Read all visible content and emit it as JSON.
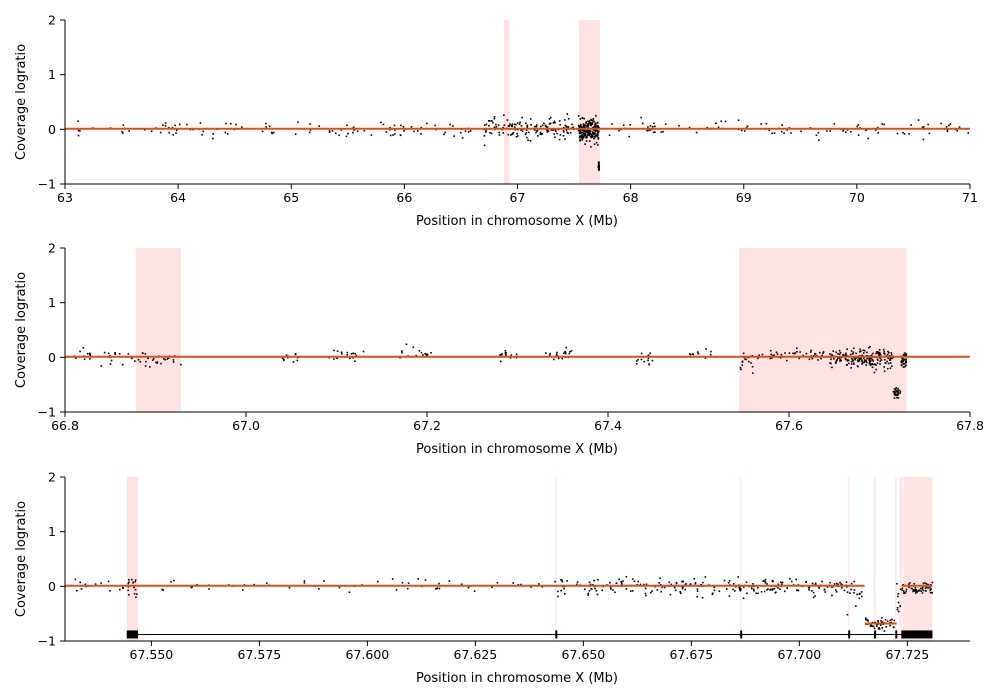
{
  "chart_data": [
    {
      "type": "scatter",
      "xlabel": "Position in chromosome X (Mb)",
      "ylabel": "Coverage logratio",
      "xlim": [
        63,
        71
      ],
      "ylim": [
        -1,
        2
      ],
      "xticks": [
        63,
        64,
        65,
        66,
        67,
        68,
        69,
        70,
        71
      ],
      "xtick_labels": [
        "63",
        "64",
        "65",
        "66",
        "67",
        "68",
        "69",
        "70",
        "71"
      ],
      "yticks": [
        -1,
        0,
        1,
        2
      ],
      "ytick_labels": [
        "−1",
        "0",
        "1",
        "2"
      ],
      "highlight_regions": [
        [
          66.88,
          66.93
        ],
        [
          67.545,
          67.73
        ]
      ],
      "segments": [
        {
          "x": [
            63,
            71
          ],
          "y": 0.01
        }
      ],
      "point_clusters": [
        {
          "x_range": [
            63.1,
            66.6
          ],
          "y_mean": 0.0,
          "spread": 0.07,
          "count": 110
        },
        {
          "x_range": [
            66.7,
            67.5
          ],
          "y_mean": 0.02,
          "spread": 0.09,
          "count": 150
        },
        {
          "x_range": [
            67.54,
            67.72
          ],
          "y_mean": -0.03,
          "spread": 0.1,
          "count": 220
        },
        {
          "x_range": [
            67.715,
            67.723
          ],
          "y_mean": -0.67,
          "spread": 0.05,
          "count": 25
        },
        {
          "x_range": [
            67.75,
            71.0
          ],
          "y_mean": 0.0,
          "spread": 0.07,
          "count": 110
        }
      ],
      "colors": {
        "points": "#000000",
        "segment": "#d9501f",
        "highlight": "#ffe3e3"
      }
    },
    {
      "type": "scatter",
      "xlabel": "Position in chromosome X (Mb)",
      "ylabel": "Coverage logratio",
      "xlim": [
        66.8,
        67.8
      ],
      "ylim": [
        -1,
        2
      ],
      "xticks": [
        66.8,
        67.0,
        67.2,
        67.4,
        67.6,
        67.8
      ],
      "xtick_labels": [
        "66.8",
        "67.0",
        "67.2",
        "67.4",
        "67.6",
        "67.8"
      ],
      "yticks": [
        -1,
        0,
        1,
        2
      ],
      "ytick_labels": [
        "−1",
        "0",
        "1",
        "2"
      ],
      "highlight_regions": [
        [
          66.878,
          66.928
        ],
        [
          67.545,
          67.73
        ]
      ],
      "segments": [
        {
          "x": [
            66.8,
            67.8
          ],
          "y": 0.01
        }
      ],
      "point_clusters": [
        {
          "x_range": [
            66.81,
            66.83
          ],
          "y_mean": 0.05,
          "spread": 0.05,
          "count": 12
        },
        {
          "x_range": [
            66.84,
            66.93
          ],
          "y_mean": -0.03,
          "spread": 0.07,
          "count": 45
        },
        {
          "x_range": [
            67.04,
            67.06
          ],
          "y_mean": -0.02,
          "spread": 0.05,
          "count": 12
        },
        {
          "x_range": [
            67.09,
            67.13
          ],
          "y_mean": 0.05,
          "spread": 0.05,
          "count": 18
        },
        {
          "x_range": [
            67.17,
            67.21
          ],
          "y_mean": 0.05,
          "spread": 0.06,
          "count": 18
        },
        {
          "x_range": [
            67.28,
            67.3
          ],
          "y_mean": 0.03,
          "spread": 0.06,
          "count": 15
        },
        {
          "x_range": [
            67.33,
            67.36
          ],
          "y_mean": 0.06,
          "spread": 0.05,
          "count": 20
        },
        {
          "x_range": [
            67.43,
            67.45
          ],
          "y_mean": -0.03,
          "spread": 0.05,
          "count": 15
        },
        {
          "x_range": [
            67.49,
            67.52
          ],
          "y_mean": 0.04,
          "spread": 0.05,
          "count": 12
        },
        {
          "x_range": [
            67.545,
            67.56
          ],
          "y_mean": -0.08,
          "spread": 0.1,
          "count": 18
        },
        {
          "x_range": [
            67.56,
            67.64
          ],
          "y_mean": 0.04,
          "spread": 0.05,
          "count": 45
        },
        {
          "x_range": [
            67.645,
            67.715
          ],
          "y_mean": -0.02,
          "spread": 0.09,
          "count": 200
        },
        {
          "x_range": [
            67.715,
            67.724
          ],
          "y_mean": -0.67,
          "spread": 0.05,
          "count": 30
        },
        {
          "x_range": [
            67.724,
            67.73
          ],
          "y_mean": -0.05,
          "spread": 0.08,
          "count": 40
        }
      ],
      "colors": {
        "points": "#000000",
        "segment": "#d9501f",
        "highlight": "#ffe3e3"
      }
    },
    {
      "type": "scatter",
      "xlabel": "Position in chromosome X (Mb)",
      "ylabel": "Coverage logratio",
      "xlim": [
        67.53,
        67.7395
      ],
      "ylim": [
        -1,
        2
      ],
      "xticks": [
        67.55,
        67.575,
        67.6,
        67.625,
        67.65,
        67.675,
        67.7,
        67.725
      ],
      "xtick_labels": [
        "67.550",
        "67.575",
        "67.600",
        "67.625",
        "67.650",
        "67.675",
        "67.700",
        "67.725"
      ],
      "yticks": [
        -1,
        0,
        1,
        2
      ],
      "ytick_labels": [
        "−1",
        "0",
        "1",
        "2"
      ],
      "highlight_regions": [
        [
          67.5443,
          67.5469
        ],
        [
          67.6435,
          67.6437
        ],
        [
          67.6863,
          67.6865
        ],
        [
          67.7113,
          67.7115
        ],
        [
          67.7173,
          67.7175
        ],
        [
          67.7222,
          67.7224
        ],
        [
          67.7232,
          67.7238
        ],
        [
          67.724,
          67.7308
        ]
      ],
      "segments": [
        {
          "x": [
            67.53,
            67.7151
          ],
          "y": 0.01
        },
        {
          "x": [
            67.7152,
            67.7225
          ],
          "y": -0.68
        },
        {
          "x": [
            67.7237,
            67.7308
          ],
          "y": 0.01
        }
      ],
      "gene_track": [
        [
          67.5443,
          67.5469
        ],
        [
          67.6435,
          67.6437
        ],
        [
          67.6863,
          67.6865
        ],
        [
          67.7113,
          67.7115
        ],
        [
          67.7173,
          67.7175
        ],
        [
          67.7222,
          67.7224
        ],
        [
          67.7236,
          67.7238
        ],
        [
          67.724,
          67.7308
        ]
      ],
      "gene_track_line": [
        67.5443,
        67.7308
      ],
      "point_clusters": [
        {
          "x_range": [
            67.531,
            67.544
          ],
          "y_mean": 0.02,
          "spread": 0.05,
          "count": 14
        },
        {
          "x_range": [
            67.5444,
            67.5468
          ],
          "y_mean": -0.05,
          "spread": 0.12,
          "count": 16
        },
        {
          "x_range": [
            67.548,
            67.641
          ],
          "y_mean": 0.0,
          "spread": 0.06,
          "count": 55
        },
        {
          "x_range": [
            67.643,
            67.686
          ],
          "y_mean": 0.0,
          "spread": 0.08,
          "count": 130
        },
        {
          "x_range": [
            67.686,
            67.711
          ],
          "y_mean": -0.02,
          "spread": 0.07,
          "count": 110
        },
        {
          "x_range": [
            67.711,
            67.715
          ],
          "y_mean": -0.12,
          "spread": 0.12,
          "count": 15
        },
        {
          "x_range": [
            67.7152,
            67.7222
          ],
          "y_mean": -0.67,
          "spread": 0.05,
          "count": 55
        },
        {
          "x_range": [
            67.7225,
            67.7235
          ],
          "y_mean": -0.3,
          "spread": 0.15,
          "count": 10
        },
        {
          "x_range": [
            67.7238,
            67.7308
          ],
          "y_mean": -0.05,
          "spread": 0.06,
          "count": 60
        }
      ],
      "colors": {
        "points": "#000000",
        "segment": "#d9501f",
        "highlight": "#ffe3e3",
        "gene_track": "#000000"
      }
    }
  ]
}
